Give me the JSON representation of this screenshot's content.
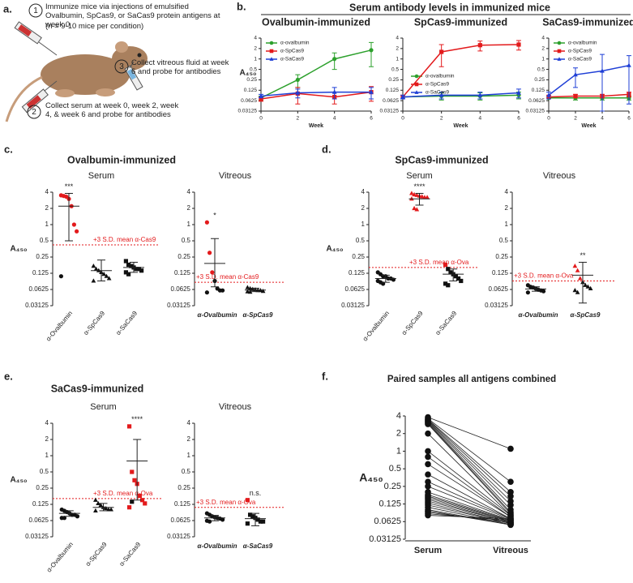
{
  "panel_a": {
    "label": "a.",
    "steps": [
      {
        "number": "1",
        "text": "Immunize mice via injections of emulsified Ovalbumin, SpCas9, or SaCas9 protein antigens at week 0"
      },
      {
        "number": "2",
        "text": "Collect serum at week 0, week 2, week 4, & week 6 and probe for antibodies"
      },
      {
        "number": "3",
        "text": "Collect vitreous fluid at week 6 and probe for antibodies"
      }
    ],
    "note": "(n = 9-10 mice per condition)"
  },
  "chart_data": [
    {
      "type": "line",
      "panel_label": "b.",
      "supertitle": "Serum antibody levels in immunized mice",
      "title": "Ovalbumin-immunized",
      "xlabel": "Week",
      "ylabel": "A₄₅₀",
      "x": [
        0,
        2,
        4,
        6
      ],
      "xlim": [
        0,
        6
      ],
      "xticks": [
        0,
        2,
        4,
        6
      ],
      "yscale": "log",
      "ylim": [
        0.03125,
        4
      ],
      "yticks": [
        0.03125,
        0.0625,
        0.125,
        0.25,
        0.5,
        1,
        2,
        4
      ],
      "legend": "upper left",
      "series": [
        {
          "name": "α-ovalbumin",
          "color": "#2ca02c",
          "marker": "circle",
          "values": [
            0.075,
            0.25,
            1.0,
            1.8
          ],
          "errors": [
            0.01,
            0.1,
            0.5,
            1.2
          ]
        },
        {
          "name": "α-SpCas9",
          "color": "#e31a1c",
          "marker": "square",
          "values": [
            0.07,
            0.1,
            0.08,
            0.11
          ],
          "errors": [
            0.01,
            0.05,
            0.03,
            0.05
          ]
        },
        {
          "name": "α-SaCas9",
          "color": "#1f3fd6",
          "marker": "triangle",
          "values": [
            0.085,
            0.105,
            0.11,
            0.11
          ],
          "errors": [
            0.01,
            0.03,
            0.04,
            0.04
          ]
        }
      ]
    },
    {
      "type": "line",
      "title": "SpCas9-immunized",
      "xlabel": "Week",
      "x": [
        0,
        2,
        4,
        6
      ],
      "xlim": [
        0,
        6
      ],
      "xticks": [
        0,
        2,
        4,
        6
      ],
      "yscale": "log",
      "ylim": [
        0.03125,
        4
      ],
      "yticks": [
        0.03125,
        0.0625,
        0.125,
        0.25,
        0.5,
        1,
        2,
        4
      ],
      "legend": "center right",
      "series": [
        {
          "name": "α-ovalbumin",
          "color": "#2ca02c",
          "marker": "circle",
          "values": [
            0.08,
            0.085,
            0.085,
            0.09
          ],
          "errors": [
            0.01,
            0.02,
            0.02,
            0.02
          ]
        },
        {
          "name": "α-SpCas9",
          "color": "#e31a1c",
          "marker": "square",
          "values": [
            0.08,
            1.6,
            2.5,
            2.6
          ],
          "errors": [
            0.01,
            1.0,
            0.8,
            0.8
          ]
        },
        {
          "name": "α-SaCas9",
          "color": "#1f3fd6",
          "marker": "triangle",
          "values": [
            0.08,
            0.09,
            0.09,
            0.105
          ],
          "errors": [
            0.01,
            0.02,
            0.02,
            0.03
          ]
        }
      ]
    },
    {
      "type": "line",
      "title": "SaCas9-immunized",
      "xlabel": "Week",
      "x": [
        0,
        2,
        4,
        6
      ],
      "xlim": [
        0,
        6
      ],
      "xticks": [
        0,
        2,
        4,
        6
      ],
      "yscale": "log",
      "ylim": [
        0.03125,
        4
      ],
      "yticks": [
        0.03125,
        0.0625,
        0.125,
        0.25,
        0.5,
        1,
        2,
        4
      ],
      "legend": "upper left",
      "series": [
        {
          "name": "α-ovalbumin",
          "color": "#2ca02c",
          "marker": "circle",
          "values": [
            0.075,
            0.075,
            0.075,
            0.075
          ],
          "errors": [
            0.005,
            0.01,
            0.01,
            0.01
          ]
        },
        {
          "name": "α-SpCas9",
          "color": "#e31a1c",
          "marker": "square",
          "values": [
            0.08,
            0.085,
            0.085,
            0.095
          ],
          "errors": [
            0.01,
            0.01,
            0.01,
            0.015
          ]
        },
        {
          "name": "α-SaCas9",
          "color": "#1f3fd6",
          "marker": "triangle",
          "values": [
            0.09,
            0.35,
            0.45,
            0.65
          ],
          "errors": [
            0.02,
            0.2,
            0.9,
            0.6
          ]
        }
      ]
    },
    {
      "type": "strip",
      "panel_label": "c.",
      "title": "Ovalbumin-immunized",
      "ylabel": "A₄₅₀",
      "yscale": "log",
      "ylim": [
        0.03125,
        4
      ],
      "yticks": [
        0.03125,
        0.0625,
        0.125,
        0.25,
        0.5,
        1,
        2,
        4
      ],
      "panels": [
        {
          "subtitle": "Serum",
          "threshold": {
            "value": 0.42,
            "label": "+3 S.D. mean α-Cas9"
          },
          "groups": [
            {
              "name": "α-Ovalbumin",
              "significance": "***",
              "mean": 2.2,
              "error_bar": [
                0.5,
                3.8
              ],
              "points": [
                {
                  "color": "#e31a1c",
                  "marker": "circle",
                  "values": [
                    3.5,
                    3.4,
                    3.3,
                    3.0,
                    2.2,
                    1.0,
                    0.75
                  ]
                },
                {
                  "color": "#111111",
                  "marker": "circle",
                  "values": [
                    0.11
                  ]
                }
              ]
            },
            {
              "name": "α-SpCas9",
              "mean": 0.14,
              "error_bar": [
                0.09,
                0.22
              ],
              "points": [
                {
                  "color": "#111111",
                  "marker": "triangle",
                  "values": [
                    0.17,
                    0.15,
                    0.14,
                    0.13,
                    0.12,
                    0.11,
                    0.1,
                    0.09
                  ]
                }
              ]
            },
            {
              "name": "α-SaCas9",
              "mean": 0.16,
              "error_bar": [
                0.13,
                0.2
              ],
              "points": [
                {
                  "color": "#111111",
                  "marker": "square",
                  "values": [
                    0.21,
                    0.18,
                    0.17,
                    0.16,
                    0.15,
                    0.15,
                    0.14,
                    0.13,
                    0.12
                  ]
                }
              ]
            }
          ]
        },
        {
          "subtitle": "Vitreous",
          "threshold": {
            "value": 0.085,
            "label": "+3 S.D. mean α-Cas9"
          },
          "groups": [
            {
              "name": "α-Ovalbumin",
              "significance": "*",
              "mean": 0.19,
              "error_bar": [
                0.07,
                0.55
              ],
              "points": [
                {
                  "color": "#e31a1c",
                  "marker": "circle",
                  "values": [
                    1.1,
                    0.3,
                    0.13
                  ]
                },
                {
                  "color": "#111111",
                  "marker": "circle",
                  "values": [
                    0.09,
                    0.065,
                    0.06,
                    0.06,
                    0.055
                  ]
                }
              ]
            },
            {
              "name": "α-SpCas9",
              "mean": 0.061,
              "error_bar": [
                0.057,
                0.066
              ],
              "points": [
                {
                  "color": "#111111",
                  "marker": "triangle",
                  "values": [
                    0.068,
                    0.065,
                    0.063,
                    0.062,
                    0.06,
                    0.06,
                    0.058,
                    0.057,
                    0.056
                  ]
                }
              ]
            }
          ]
        }
      ]
    },
    {
      "type": "strip",
      "panel_label": "d.",
      "title": "SpCas9-immunized",
      "ylabel": "A₄₅₀",
      "yscale": "log",
      "ylim": [
        0.03125,
        4
      ],
      "yticks": [
        0.03125,
        0.0625,
        0.125,
        0.25,
        0.5,
        1,
        2,
        4
      ],
      "panels": [
        {
          "subtitle": "Serum",
          "threshold": {
            "value": 0.16,
            "label": "+3 S.D. mean α-Ova"
          },
          "groups": [
            {
              "name": "α-Ovalbumin",
              "mean": 0.1,
              "error_bar": [
                0.085,
                0.115
              ],
              "points": [
                {
                  "color": "#111111",
                  "marker": "circle",
                  "values": [
                    0.13,
                    0.12,
                    0.11,
                    0.11,
                    0.1,
                    0.1,
                    0.095,
                    0.09,
                    0.085,
                    0.08
                  ]
                }
              ]
            },
            {
              "name": "α-SpCas9",
              "significance": "****",
              "mean": 3.0,
              "error_bar": [
                2.3,
                3.8
              ],
              "points": [
                {
                  "color": "#e31a1c",
                  "marker": "triangle",
                  "values": [
                    3.8,
                    3.6,
                    3.5,
                    3.4,
                    3.3,
                    3.2,
                    3.2,
                    3.0,
                    2.0,
                    1.9
                  ]
                }
              ]
            },
            {
              "name": "α-SaCas9",
              "mean": 0.12,
              "error_bar": [
                0.09,
                0.15
              ],
              "points": [
                {
                  "color": "#e31a1c",
                  "marker": "square",
                  "values": [
                    0.18
                  ]
                },
                {
                  "color": "#111111",
                  "marker": "square",
                  "values": [
                    0.15,
                    0.13,
                    0.12,
                    0.11,
                    0.1,
                    0.09,
                    0.08,
                    0.075
                  ]
                }
              ]
            }
          ]
        },
        {
          "subtitle": "Vitreous",
          "threshold": {
            "value": 0.09,
            "label": "+3 S.D. mean α-Ova"
          },
          "groups": [
            {
              "name": "α-Ovalbumin",
              "mean": 0.064,
              "error_bar": [
                0.058,
                0.07
              ],
              "points": [
                {
                  "color": "#111111",
                  "marker": "circle",
                  "values": [
                    0.075,
                    0.07,
                    0.068,
                    0.065,
                    0.062,
                    0.06,
                    0.058,
                    0.055
                  ]
                }
              ]
            },
            {
              "name": "α-SpCas9",
              "significance": "**",
              "mean": 0.115,
              "error_bar": [
                0.035,
                0.2
              ],
              "points": [
                {
                  "color": "#e31a1c",
                  "marker": "triangle",
                  "values": [
                    0.17,
                    0.14,
                    0.1
                  ]
                },
                {
                  "color": "#111111",
                  "marker": "triangle",
                  "values": [
                    0.085,
                    0.075,
                    0.07,
                    0.065,
                    0.06,
                    0.055
                  ]
                }
              ]
            }
          ]
        }
      ]
    },
    {
      "type": "strip",
      "panel_label": "e.",
      "title": "SaCas9-immunized",
      "ylabel": "A₄₅₀",
      "yscale": "log",
      "ylim": [
        0.03125,
        4
      ],
      "yticks": [
        0.03125,
        0.0625,
        0.125,
        0.25,
        0.5,
        1,
        2,
        4
      ],
      "panels": [
        {
          "subtitle": "Serum",
          "threshold": {
            "value": 0.16,
            "label": "+3 S.D. mean α-Ova"
          },
          "groups": [
            {
              "name": "α-Ovalbumin",
              "mean": 0.085,
              "error_bar": [
                0.075,
                0.095
              ],
              "points": [
                {
                  "color": "#111111",
                  "marker": "circle",
                  "values": [
                    0.1,
                    0.095,
                    0.09,
                    0.085,
                    0.08,
                    0.08,
                    0.075,
                    0.07,
                    0.07
                  ]
                }
              ]
            },
            {
              "name": "α-SpCas9",
              "mean": 0.11,
              "error_bar": [
                0.095,
                0.13
              ],
              "points": [
                {
                  "color": "#111111",
                  "marker": "triangle",
                  "values": [
                    0.15,
                    0.13,
                    0.12,
                    0.11,
                    0.105,
                    0.1,
                    0.1,
                    0.095
                  ]
                }
              ]
            },
            {
              "name": "α-SaCas9",
              "significance": "****",
              "mean": 0.8,
              "error_bar": [
                0.15,
                2.0
              ],
              "points": [
                {
                  "color": "#e31a1c",
                  "marker": "square",
                  "values": [
                    3.5,
                    0.5,
                    0.35,
                    0.3,
                    0.18,
                    0.15,
                    0.13,
                    0.11
                  ]
                },
                {
                  "color": "#111111",
                  "marker": "square",
                  "values": [
                    0.14
                  ]
                }
              ]
            }
          ]
        },
        {
          "subtitle": "Vitreous",
          "threshold": {
            "value": 0.11,
            "label": "+3 S.D. mean α-Ova"
          },
          "groups": [
            {
              "name": "α-Ovalbumin",
              "mean": 0.07,
              "error_bar": [
                0.062,
                0.078
              ],
              "points": [
                {
                  "color": "#111111",
                  "marker": "circle",
                  "values": [
                    0.085,
                    0.08,
                    0.075,
                    0.072,
                    0.07,
                    0.068,
                    0.065,
                    0.062,
                    0.06
                  ]
                }
              ]
            },
            {
              "name": "α-SaCas9",
              "significance": "n.s.",
              "mean": 0.068,
              "error_bar": [
                0.05,
                0.085
              ],
              "points": [
                {
                  "color": "#e31a1c",
                  "marker": "square",
                  "values": [
                    0.15
                  ]
                },
                {
                  "color": "#111111",
                  "marker": "square",
                  "values": [
                    0.08,
                    0.075,
                    0.07,
                    0.065,
                    0.06,
                    0.06,
                    0.055
                  ]
                }
              ]
            }
          ]
        }
      ]
    },
    {
      "type": "paired",
      "panel_label": "f.",
      "title": "Paired samples all antigens combined",
      "ylabel": "A₄₅₀",
      "categories": [
        "Serum",
        "Vitreous"
      ],
      "yscale": "log",
      "ylim": [
        0.03125,
        4
      ],
      "yticks": [
        0.03125,
        0.0625,
        0.125,
        0.25,
        0.5,
        1,
        2,
        4
      ],
      "values": [
        [
          3.8,
          3.6,
          3.5,
          3.4,
          3.3,
          3.2,
          3.1,
          3.0,
          2.9,
          2.0,
          1.0,
          0.8,
          0.6,
          0.4,
          0.3,
          0.25,
          0.2,
          0.18,
          0.17,
          0.16,
          0.15,
          0.14,
          0.13,
          0.12,
          0.11,
          0.1,
          0.095,
          0.09,
          0.085,
          0.08
        ],
        [
          1.1,
          0.3,
          0.2,
          0.17,
          0.14,
          0.12,
          0.1,
          0.09,
          0.085,
          0.08,
          0.08,
          0.075,
          0.075,
          0.07,
          0.07,
          0.068,
          0.066,
          0.065,
          0.063,
          0.062,
          0.06,
          0.06,
          0.058,
          0.058,
          0.056,
          0.055,
          0.055,
          0.06,
          0.065,
          0.07
        ]
      ]
    }
  ]
}
